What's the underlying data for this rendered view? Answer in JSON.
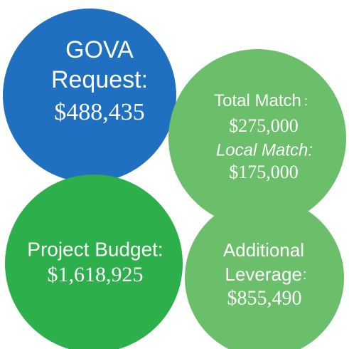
{
  "circles": [
    {
      "lines": [
        "GOVA",
        "Request:",
        "$488,435"
      ]
    },
    {
      "lines": [
        "Total Match",
        ":",
        "$275,000",
        "Local Match:",
        "$175,000"
      ]
    },
    {
      "lines": [
        "Project Budget:",
        "$1,618,925"
      ]
    },
    {
      "lines": [
        "Additional",
        "Leverage",
        ":",
        "$855,490"
      ]
    }
  ]
}
